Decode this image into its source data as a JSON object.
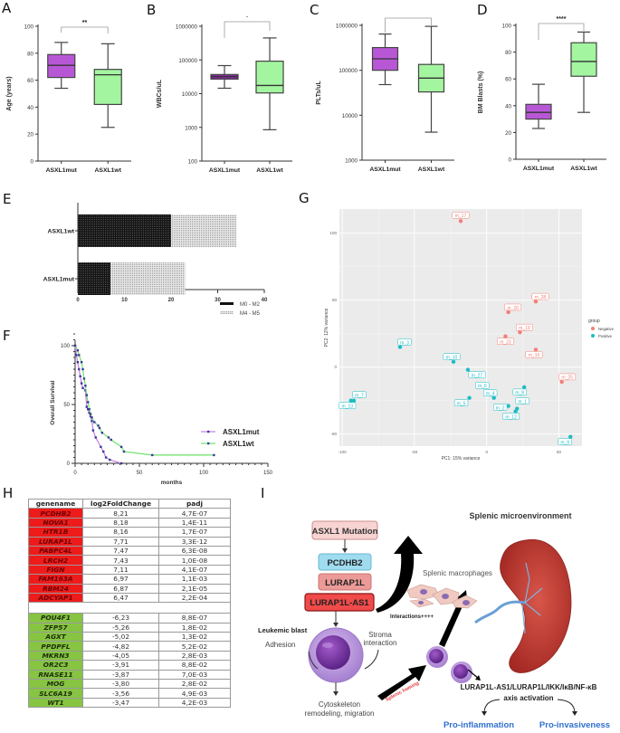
{
  "figure": {
    "panels": [
      "A",
      "B",
      "C",
      "D",
      "E",
      "F",
      "G",
      "H",
      "I"
    ]
  },
  "chart_data": [
    {
      "panel": "A",
      "type": "box",
      "ylabel": "Age (years)",
      "categories": [
        "ASXL1mut",
        "ASXL1wt"
      ],
      "yscale": "linear",
      "ylim": [
        0,
        100
      ],
      "yticks": [
        "0",
        "20",
        "40",
        "60",
        "80",
        "100"
      ],
      "boxes": [
        {
          "name": "ASXL1mut",
          "min": 54,
          "q1": 62,
          "median": 71,
          "q3": 79,
          "max": 88,
          "color": "#b857d6"
        },
        {
          "name": "ASXL1wt",
          "min": 25,
          "q1": 42,
          "median": 64,
          "q3": 68,
          "max": 87,
          "color": "#a4f5a0"
        }
      ],
      "significance": "**"
    },
    {
      "panel": "B",
      "type": "box",
      "ylabel": "WBCs/uL",
      "categories": [
        "ASXL1mut",
        "ASXL1wt"
      ],
      "yscale": "log",
      "ylim": [
        100,
        1000000
      ],
      "yticks": [
        "100",
        "1000",
        "10000",
        "100000",
        "1000000"
      ],
      "boxes": [
        {
          "name": "ASXL1mut",
          "min": 14500,
          "q1": 27000,
          "median": 32000,
          "q3": 37000,
          "max": 68000,
          "color": "#8a2aa6"
        },
        {
          "name": "ASXL1wt",
          "min": 850,
          "q1": 10500,
          "median": 17500,
          "q3": 92000,
          "max": 450000,
          "color": "#a4f5a0"
        }
      ],
      "significance": "*"
    },
    {
      "panel": "C",
      "type": "box",
      "ylabel": "PLTs/uL",
      "categories": [
        "ASXL1mut",
        "ASXL1wt"
      ],
      "yscale": "log",
      "ylim": [
        1000,
        1000000
      ],
      "yticks": [
        "1000",
        "10000",
        "100000",
        "1000000"
      ],
      "boxes": [
        {
          "name": "ASXL1mut",
          "min": 48000,
          "q1": 100000,
          "median": 180000,
          "q3": 320000,
          "max": 640000,
          "color": "#b857d6"
        },
        {
          "name": "ASXL1wt",
          "min": 4200,
          "q1": 33000,
          "median": 67000,
          "q3": 135000,
          "max": 950000,
          "color": "#a4f5a0"
        }
      ],
      "significance": "***"
    },
    {
      "panel": "D",
      "type": "box",
      "ylabel": "BM Blasts (%)",
      "categories": [
        "ASXL1mut",
        "ASXL1wt"
      ],
      "yscale": "linear",
      "ylim": [
        0,
        100
      ],
      "yticks": [
        "0",
        "20",
        "40",
        "60",
        "80",
        "100"
      ],
      "boxes": [
        {
          "name": "ASXL1mut",
          "min": 23,
          "q1": 30,
          "median": 35,
          "q3": 41,
          "max": 56,
          "color": "#b857d6"
        },
        {
          "name": "ASXL1wt",
          "min": 35,
          "q1": 62,
          "median": 73,
          "q3": 87,
          "max": 95,
          "color": "#a4f5a0"
        }
      ],
      "significance": "****"
    },
    {
      "panel": "E",
      "type": "bar",
      "orientation": "horizontal",
      "stacked": true,
      "categories": [
        "ASXL1wt",
        "ASXL1mut"
      ],
      "series": [
        {
          "name": "M0 - M2",
          "values": [
            20,
            7
          ],
          "pattern": "dark-dots"
        },
        {
          "name": "M4 - M5",
          "values": [
            14,
            16
          ],
          "pattern": "light-dots"
        }
      ],
      "xlim": [
        0,
        40
      ],
      "xticks": [
        "0",
        "10",
        "20",
        "30",
        "40"
      ],
      "legend": "bottom-right"
    },
    {
      "panel": "F",
      "type": "line",
      "subtype": "kaplan-meier",
      "xlabel": "months",
      "ylabel": "Overall Survival",
      "xlim": [
        0,
        150
      ],
      "ylim": [
        0,
        100
      ],
      "xticks": [
        "0",
        "50",
        "100",
        "150"
      ],
      "yticks": [
        "0",
        "50",
        "100"
      ],
      "legend": "right",
      "series": [
        {
          "name": "ASXL1mut",
          "color": "#c77be0",
          "x": [
            0,
            1,
            2,
            3,
            4,
            5,
            6,
            8,
            9,
            10,
            11,
            12,
            13,
            14,
            16,
            20,
            22,
            24,
            27,
            36
          ],
          "y": [
            100,
            92,
            86,
            80,
            74,
            68,
            64,
            62,
            48,
            46,
            43,
            40,
            36,
            28,
            22,
            14,
            10,
            5,
            3,
            0
          ]
        },
        {
          "name": "ASXL1wt",
          "color": "#6de36a",
          "x": [
            0,
            2,
            3,
            5,
            6,
            7,
            8,
            9,
            10,
            11,
            12,
            13,
            15,
            18,
            19,
            21,
            26,
            28,
            36,
            38,
            60,
            108
          ],
          "y": [
            100,
            96,
            92,
            86,
            80,
            72,
            66,
            58,
            52,
            46,
            42,
            39,
            35,
            32,
            30,
            26,
            22,
            20,
            14,
            10,
            7,
            7
          ]
        }
      ]
    },
    {
      "panel": "G",
      "type": "scatter",
      "xlabel": "PC1: 15% variance",
      "ylabel": "PC2: 12% variance",
      "xlim": [
        -102,
        66
      ],
      "ylim": [
        -59,
        118
      ],
      "xticks": [
        "-100",
        "-50",
        "0",
        "50"
      ],
      "yticks": [
        "-50",
        "0",
        "50",
        "100"
      ],
      "legend_title": "group",
      "legend": "right",
      "groups": [
        {
          "name": "Negative",
          "color": "#f27f76"
        },
        {
          "name": "Positive",
          "color": "#1bbcc4"
        }
      ],
      "points": [
        {
          "label": "m_17",
          "x": -18,
          "y": 109,
          "group": "Negative"
        },
        {
          "label": "m_28",
          "x": 34,
          "y": 49,
          "group": "Negative"
        },
        {
          "label": "m_20",
          "x": 15,
          "y": 41,
          "group": "Negative"
        },
        {
          "label": "m_19",
          "x": 23,
          "y": 26,
          "group": "Negative"
        },
        {
          "label": "m_23",
          "x": 13,
          "y": 23,
          "group": "Negative"
        },
        {
          "label": "m_16",
          "x": 34,
          "y": 13,
          "group": "Negative"
        },
        {
          "label": "m_25",
          "x": 52,
          "y": -11,
          "group": "Negative"
        },
        {
          "label": "m_3",
          "x": -60,
          "y": 15,
          "group": "Positive"
        },
        {
          "label": "m_10",
          "x": -23,
          "y": 4,
          "group": "Positive"
        },
        {
          "label": "m_27",
          "x": -13,
          "y": -2,
          "group": "Positive"
        },
        {
          "label": "m_6",
          "x": -3,
          "y": -14,
          "group": "Positive"
        },
        {
          "label": "m_4",
          "x": 5,
          "y": -23,
          "group": "Positive"
        },
        {
          "label": "m_8",
          "x": 26,
          "y": -15,
          "group": "Positive"
        },
        {
          "label": "m_5",
          "x": -12,
          "y": -23,
          "group": "Positive"
        },
        {
          "label": "m_2",
          "x": 15,
          "y": -29,
          "group": "Positive"
        },
        {
          "label": "m_1",
          "x": 21,
          "y": -31,
          "group": "Positive"
        },
        {
          "label": "m_12",
          "x": 20,
          "y": -33,
          "group": "Positive"
        },
        {
          "label": "m_7",
          "x": -92,
          "y": -25,
          "group": "Positive"
        },
        {
          "label": "m_13",
          "x": -94,
          "y": -25,
          "group": "Positive"
        },
        {
          "label": "m_9",
          "x": 58,
          "y": -52,
          "group": "Positive"
        }
      ]
    },
    {
      "panel": "H",
      "type": "table",
      "columns": [
        "genename",
        "log2FoldChange",
        "padj"
      ],
      "upregulated": [
        [
          "PCDHB2",
          "8,21",
          "4,7E-07"
        ],
        [
          "NOVA1",
          "8,18",
          "1,4E-11"
        ],
        [
          "HTR1B",
          "8,16",
          "1,7E-07"
        ],
        [
          "LURAP1L",
          "7,71",
          "3,3E-12"
        ],
        [
          "PABPC4L",
          "7,47",
          "6,3E-08"
        ],
        [
          "LRCH2",
          "7,43",
          "1,0E-08"
        ],
        [
          "FIGN",
          "7,11",
          "4,1E-07"
        ],
        [
          "FAM163A",
          "6,97",
          "1,1E-03"
        ],
        [
          "RBM24",
          "6,87",
          "2,1E-05"
        ],
        [
          "ADCYAP1",
          "6,47",
          "2,2E-04"
        ]
      ],
      "downregulated": [
        [
          "POU4F1",
          "-6,23",
          "8,8E-07"
        ],
        [
          "ZFP57",
          "-5,26",
          "1,8E-02"
        ],
        [
          "AGXT",
          "-5,02",
          "1,3E-02"
        ],
        [
          "PPDPFL",
          "-4,82",
          "5,2E-02"
        ],
        [
          "MKRN3",
          "-4,05",
          "2,8E-03"
        ],
        [
          "OR2C3",
          "-3,91",
          "8,8E-02"
        ],
        [
          "RNASE11",
          "-3,87",
          "7,0E-03"
        ],
        [
          "MOG",
          "-3,80",
          "2,8E-02"
        ],
        [
          "SLC6A19",
          "-3,56",
          "4,9E-03"
        ],
        [
          "WT1",
          "-3,47",
          "4,2E-03"
        ]
      ]
    }
  ],
  "diagram": {
    "asxl1_mutation": "ASXL1 Mutation",
    "pcdhb2": "PCDHB2",
    "lurap1l": "LURAP1L",
    "lurap1l_as1": "LURAP1L-AS1",
    "leukemic_blast": "Leukemic blast",
    "adhesion": "Adhesion",
    "stroma_interaction_1": "Stroma",
    "stroma_interaction_2": "interaction",
    "cytoskeleton_1": "Cytoskeleton",
    "cytoskeleton_2": "remodeling, migration",
    "splenic_homing": "Splenic homing",
    "interactions": "Interactions++++",
    "splenic_macrophages": "Splenic macrophages",
    "splenic_microenvironment": "Splenic microenvironment",
    "axis_1": "LURAP1L-AS1/LURAP1L/IKK/IκB/NF-κB",
    "axis_2": "axis activation",
    "pro_inflammation": "Pro-inflammation",
    "pro_invasiveness": "Pro-invasiveness"
  }
}
